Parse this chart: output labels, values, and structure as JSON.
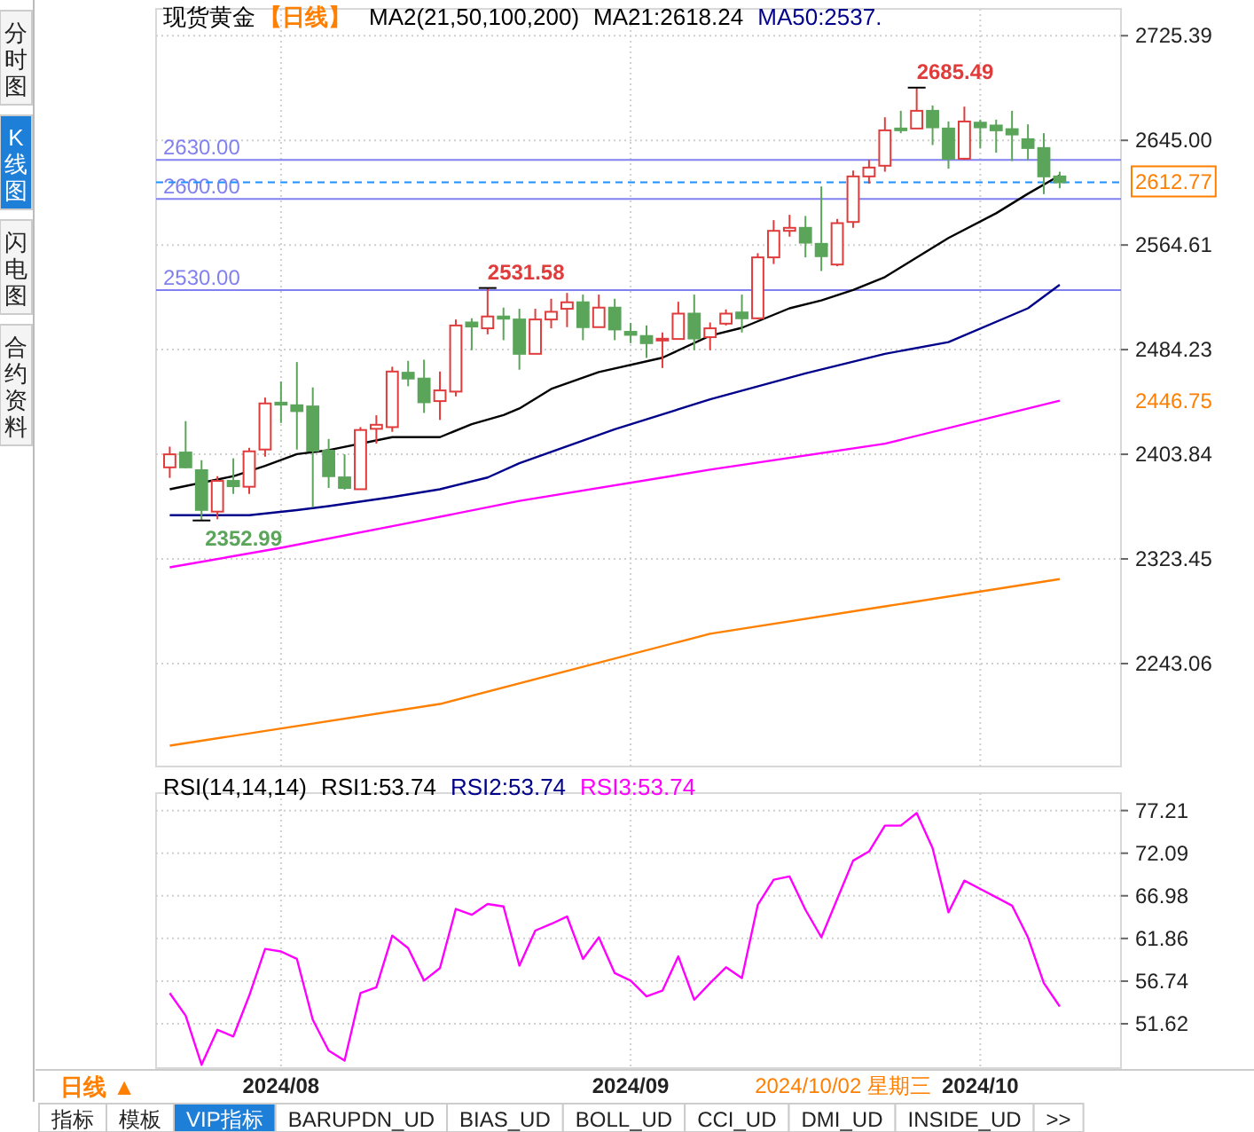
{
  "chart_data": [
    {
      "type": "candlestick",
      "title": "现货黄金",
      "subtitle": "【日线】",
      "legend_title": "MA2(21,50,100,200)",
      "legend": "top",
      "grid": true,
      "tick_labels": "y",
      "categories": [
        null,
        null,
        null,
        null,
        null,
        null,
        null,
        "2024/08",
        null,
        null,
        null,
        null,
        null,
        null,
        null,
        null,
        null,
        null,
        null,
        null,
        null,
        null,
        null,
        null,
        null,
        null,
        null,
        null,
        null,
        "2024/09",
        null,
        null,
        null,
        null,
        null,
        null,
        null,
        null,
        null,
        null,
        null,
        null,
        null,
        null,
        null,
        null,
        null,
        null,
        null,
        null,
        null,
        "2024/10",
        null,
        null,
        null,
        null,
        null
      ],
      "ohlc": [
        [
          2393.8,
          2409.7,
          2385.7,
          2403.8
        ],
        [
          2405.2,
          2429.3,
          2393.0,
          2393.8
        ],
        [
          2391.6,
          2399.3,
          2352.99,
          2361.1
        ],
        [
          2359.8,
          2387.0,
          2353.9,
          2383.4
        ],
        [
          2383.4,
          2400.7,
          2373.4,
          2379.3
        ],
        [
          2378.9,
          2408.8,
          2373.4,
          2406.1
        ],
        [
          2407.5,
          2447.4,
          2402.0,
          2442.9
        ],
        [
          2443.5,
          2459.7,
          2427.9,
          2442.0
        ],
        [
          2441.5,
          2474.7,
          2407.5,
          2437.0
        ],
        [
          2440.6,
          2455.2,
          2363.0,
          2406.6
        ],
        [
          2406.6,
          2415.6,
          2378.0,
          2387.0
        ],
        [
          2386.1,
          2403.8,
          2376.6,
          2378.0
        ],
        [
          2377.0,
          2424.7,
          2377.0,
          2422.5
        ],
        [
          2423.4,
          2433.8,
          2412.0,
          2426.5
        ],
        [
          2424.7,
          2471.1,
          2421.1,
          2467.4
        ],
        [
          2466.5,
          2475.6,
          2456.1,
          2462.0
        ],
        [
          2462.0,
          2476.5,
          2435.6,
          2443.8
        ],
        [
          2444.7,
          2467.4,
          2430.2,
          2452.9
        ],
        [
          2452.0,
          2507.4,
          2448.3,
          2502.8
        ],
        [
          2505.1,
          2508.3,
          2483.8,
          2502.0
        ],
        [
          2500.6,
          2531.58,
          2496.0,
          2509.7
        ],
        [
          2509.7,
          2516.5,
          2491.5,
          2508.0
        ],
        [
          2507.4,
          2515.6,
          2468.8,
          2481.0
        ],
        [
          2481.0,
          2515.6,
          2481.0,
          2507.4
        ],
        [
          2507.4,
          2523.3,
          2500.6,
          2513.3
        ],
        [
          2515.6,
          2527.8,
          2501.5,
          2520.6
        ],
        [
          2520.6,
          2526.5,
          2491.5,
          2501.5
        ],
        [
          2501.5,
          2526.5,
          2501.5,
          2516.5
        ],
        [
          2516.5,
          2523.3,
          2491.5,
          2499.7
        ],
        [
          2497.9,
          2504.7,
          2489.2,
          2495.6
        ],
        [
          2494.7,
          2502.8,
          2477.9,
          2489.2
        ],
        [
          2491.5,
          2497.4,
          2470.1,
          2492.6
        ],
        [
          2492.4,
          2521.0,
          2492.4,
          2511.9
        ],
        [
          2511.9,
          2526.5,
          2483.8,
          2492.8
        ],
        [
          2493.8,
          2505.1,
          2483.8,
          2500.6
        ],
        [
          2504.2,
          2515.1,
          2502.8,
          2511.9
        ],
        [
          2512.8,
          2526.5,
          2497.4,
          2508.3
        ],
        [
          2508.3,
          2558.3,
          2507.4,
          2555.1
        ],
        [
          2555.1,
          2583.7,
          2550.0,
          2575.5
        ],
        [
          2575.5,
          2587.8,
          2571.0,
          2577.8
        ],
        [
          2577.8,
          2586.9,
          2555.1,
          2566.4
        ],
        [
          2565.5,
          2609.6,
          2544.6,
          2556.0
        ],
        [
          2549.6,
          2584.6,
          2548.3,
          2581.4
        ],
        [
          2582.3,
          2621.8,
          2577.8,
          2617.3
        ],
        [
          2617.3,
          2630.0,
          2611.8,
          2624.1
        ],
        [
          2625.5,
          2662.7,
          2620.9,
          2652.7
        ],
        [
          2654.1,
          2667.7,
          2650.5,
          2653.2
        ],
        [
          2654.1,
          2685.49,
          2654.1,
          2667.7
        ],
        [
          2667.7,
          2671.8,
          2641.4,
          2655.0
        ],
        [
          2654.1,
          2659.5,
          2623.2,
          2630.9
        ],
        [
          2630.9,
          2670.9,
          2630.0,
          2659.5
        ],
        [
          2658.6,
          2660.9,
          2639.1,
          2655.0
        ],
        [
          2656.4,
          2660.9,
          2635.5,
          2652.7
        ],
        [
          2653.6,
          2667.7,
          2629.1,
          2649.5
        ],
        [
          2645.9,
          2657.3,
          2630.0,
          2639.1
        ],
        [
          2639.1,
          2650.5,
          2603.7,
          2617.3
        ],
        [
          2617.3,
          2620.9,
          2608.2,
          2612.77
        ]
      ],
      "series": [
        {
          "type": "line",
          "name": "MA21:2618.24",
          "color": "#000000",
          "values": [
            2377,
            null,
            null,
            null,
            2387,
            null,
            2395,
            null,
            2404,
            null,
            2407,
            null,
            null,
            null,
            2417,
            null,
            null,
            2417,
            null,
            2427,
            null,
            2434,
            2439,
            null,
            2454,
            null,
            null,
            2467,
            null,
            null,
            null,
            2478,
            null,
            null,
            2495,
            null,
            2501,
            null,
            null,
            2516,
            null,
            2522,
            null,
            2530,
            null,
            2540,
            null,
            2555,
            null,
            2570,
            null,
            null,
            2589,
            null,
            2604,
            null,
            2618
          ]
        },
        {
          "type": "line",
          "name": "MA50:2537.",
          "color": "#00008b",
          "values": [
            2357,
            null,
            null,
            null,
            null,
            2357,
            null,
            null,
            2361,
            null,
            2364,
            null,
            null,
            null,
            2371,
            null,
            null,
            2377,
            null,
            null,
            2386,
            null,
            2397,
            null,
            null,
            null,
            null,
            null,
            2423,
            null,
            null,
            null,
            null,
            null,
            2446,
            null,
            null,
            null,
            null,
            null,
            2466,
            null,
            null,
            null,
            null,
            2481,
            null,
            null,
            null,
            2490,
            null,
            null,
            null,
            null,
            2516,
            null,
            2534
          ]
        },
        {
          "type": "line",
          "color": "#ff00ff",
          "values": [
            2317,
            null,
            null,
            null,
            null,
            null,
            null,
            2332,
            null,
            null,
            null,
            null,
            null,
            null,
            null,
            2351,
            null,
            null,
            null,
            null,
            null,
            null,
            2368,
            null,
            null,
            null,
            null,
            null,
            null,
            null,
            null,
            null,
            null,
            null,
            2392,
            null,
            null,
            null,
            null,
            null,
            null,
            null,
            null,
            null,
            null,
            2412,
            null,
            null,
            null,
            null,
            null,
            null,
            null,
            null,
            null,
            null,
            2445
          ]
        },
        {
          "type": "line",
          "color": "#ff8000",
          "values": [
            2180,
            null,
            null,
            null,
            null,
            null,
            null,
            null,
            null,
            null,
            null,
            null,
            null,
            null,
            null,
            null,
            null,
            2212,
            null,
            null,
            null,
            null,
            null,
            null,
            null,
            null,
            null,
            null,
            null,
            null,
            null,
            null,
            null,
            null,
            2266,
            null,
            null,
            null,
            null,
            null,
            null,
            null,
            null,
            null,
            null,
            2287,
            null,
            null,
            null,
            null,
            null,
            null,
            null,
            null,
            null,
            null,
            2308
          ]
        }
      ],
      "ylim": [
        2164,
        2746
      ],
      "yticks": [
        2725.39,
        {
          "value": 2645,
          "label": "2645.00"
        },
        2564.61,
        2484.23,
        2403.84,
        2323.45,
        2243.06
      ],
      "ref_lines": [
        {
          "axis": "y",
          "value": 2630,
          "label": "2630.00",
          "color": "#8080f0"
        },
        {
          "axis": "y",
          "value": 2600,
          "label": "2600.00",
          "color": "#8080f0"
        },
        {
          "axis": "y",
          "value": 2530,
          "label": "2530.00",
          "color": "#8080f0"
        },
        {
          "axis": "y",
          "value": 2612.77,
          "label": "2612.77",
          "color": "#1e90ff",
          "line_style": "dashed"
        }
      ],
      "annotations": [
        "2685.49",
        "2531.58",
        "2352.99",
        "2446.75"
      ]
    },
    {
      "type": "line",
      "legend_title": "RSI(14,14,14)",
      "legend": "top",
      "grid": true,
      "categories": [
        null,
        null,
        null,
        null,
        null,
        null,
        null,
        "2024/08",
        null,
        null,
        null,
        null,
        null,
        null,
        null,
        null,
        null,
        null,
        null,
        null,
        null,
        null,
        null,
        null,
        null,
        null,
        null,
        null,
        null,
        "2024/09",
        null,
        null,
        null,
        null,
        null,
        null,
        null,
        null,
        null,
        null,
        null,
        null,
        null,
        null,
        null,
        null,
        null,
        null,
        null,
        null,
        null,
        "2024/10",
        null,
        null,
        null,
        null,
        null
      ],
      "series": [
        {
          "name": "RSI3:53.74",
          "color": "#ff00ff",
          "values": [
            55.3,
            52.6,
            46.7,
            50.9,
            50.1,
            55.0,
            60.6,
            60.3,
            59.4,
            52.1,
            48.4,
            47.2,
            55.3,
            56.0,
            62.2,
            60.7,
            56.8,
            58.3,
            65.4,
            64.7,
            66.0,
            65.7,
            58.6,
            62.8,
            63.6,
            64.5,
            59.4,
            62.0,
            57.7,
            56.8,
            54.9,
            55.6,
            59.7,
            54.5,
            56.5,
            58.4,
            57.1,
            65.9,
            68.9,
            69.3,
            65.3,
            62.0,
            66.6,
            71.2,
            72.3,
            75.4,
            75.4,
            76.9,
            72.7,
            65.0,
            68.8,
            67.8,
            66.8,
            65.8,
            62.0,
            56.5,
            53.7
          ]
        }
      ],
      "ylim": [
        46.3,
        79.3
      ],
      "yticks": [
        77.21,
        72.09,
        66.98,
        61.86,
        56.74,
        51.62
      ],
      "annotations": [
        "RSI1:53.74",
        "RSI2:53.74",
        "日线 ▲",
        "2024/10/02 星期三"
      ]
    },
    {
      "type": "other",
      "annotations": [
        "分时图",
        "K线图",
        "闪电图",
        "合约资料",
        "指标",
        "模板",
        "VIP指标",
        "BARUPDN_UD",
        "BIAS_UD",
        "BOLL_UD",
        "CCI_UD",
        "DMI_UD",
        "INSIDE_UD",
        ">>"
      ]
    }
  ]
}
